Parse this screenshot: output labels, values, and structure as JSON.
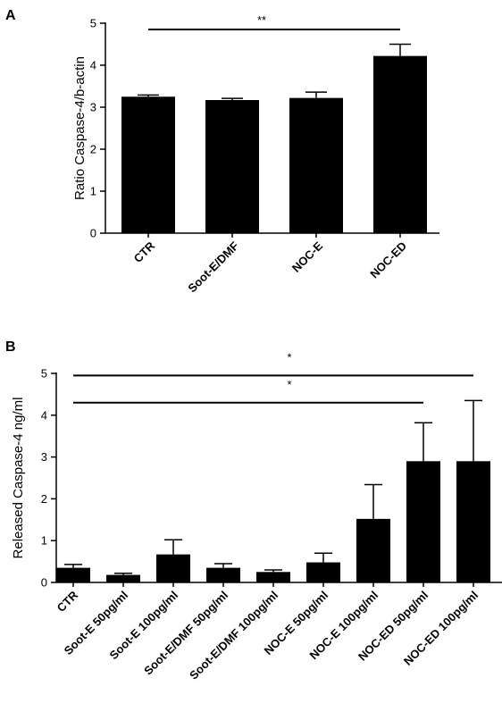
{
  "chart_data": [
    {
      "panel": "A",
      "type": "bar",
      "title": "",
      "xlabel": "",
      "ylabel": "Ratio Caspase-4/b-actin",
      "ylim": [
        0,
        5
      ],
      "yticks": [
        0,
        1,
        2,
        3,
        4,
        5
      ],
      "categories": [
        "CTR",
        "Soot-E/DMF",
        "NOC-E",
        "NOC-ED"
      ],
      "values": [
        3.25,
        3.17,
        3.22,
        4.22
      ],
      "errors": [
        0.04,
        0.04,
        0.14,
        0.28
      ],
      "grid": false,
      "legend": "none",
      "significance": [
        {
          "from": 0,
          "to": 3,
          "label": "**",
          "y": 4.85
        }
      ],
      "bar_color": "#000000"
    },
    {
      "panel": "B",
      "type": "bar",
      "title": "",
      "xlabel": "",
      "ylabel": "Released Caspase-4 ng/ml",
      "ylim": [
        0,
        5
      ],
      "yticks": [
        0,
        1,
        2,
        3,
        4,
        5
      ],
      "categories": [
        "CTR",
        "Soot-E 50pg/ml",
        "Soot-E 100pg/ml",
        "Soot-E/DMF 50pg/ml",
        "Soot-E/DMF 100pg/ml",
        "NOC-E 50pg/ml",
        "NOC-E 100pg/ml",
        "NOC-ED 50pg/ml",
        "NOC-ED 100pg/ml"
      ],
      "values": [
        0.35,
        0.18,
        0.67,
        0.35,
        0.25,
        0.48,
        1.52,
        2.9,
        2.9
      ],
      "errors": [
        0.08,
        0.04,
        0.35,
        0.1,
        0.05,
        0.22,
        0.82,
        0.92,
        1.45
      ],
      "grid": false,
      "legend": "none",
      "significance": [
        {
          "from": 0,
          "to": 8,
          "label": "*",
          "y": 4.95
        },
        {
          "from": 0,
          "to": 7,
          "label": "*",
          "y": 4.3
        }
      ],
      "bar_color": "#000000"
    }
  ]
}
